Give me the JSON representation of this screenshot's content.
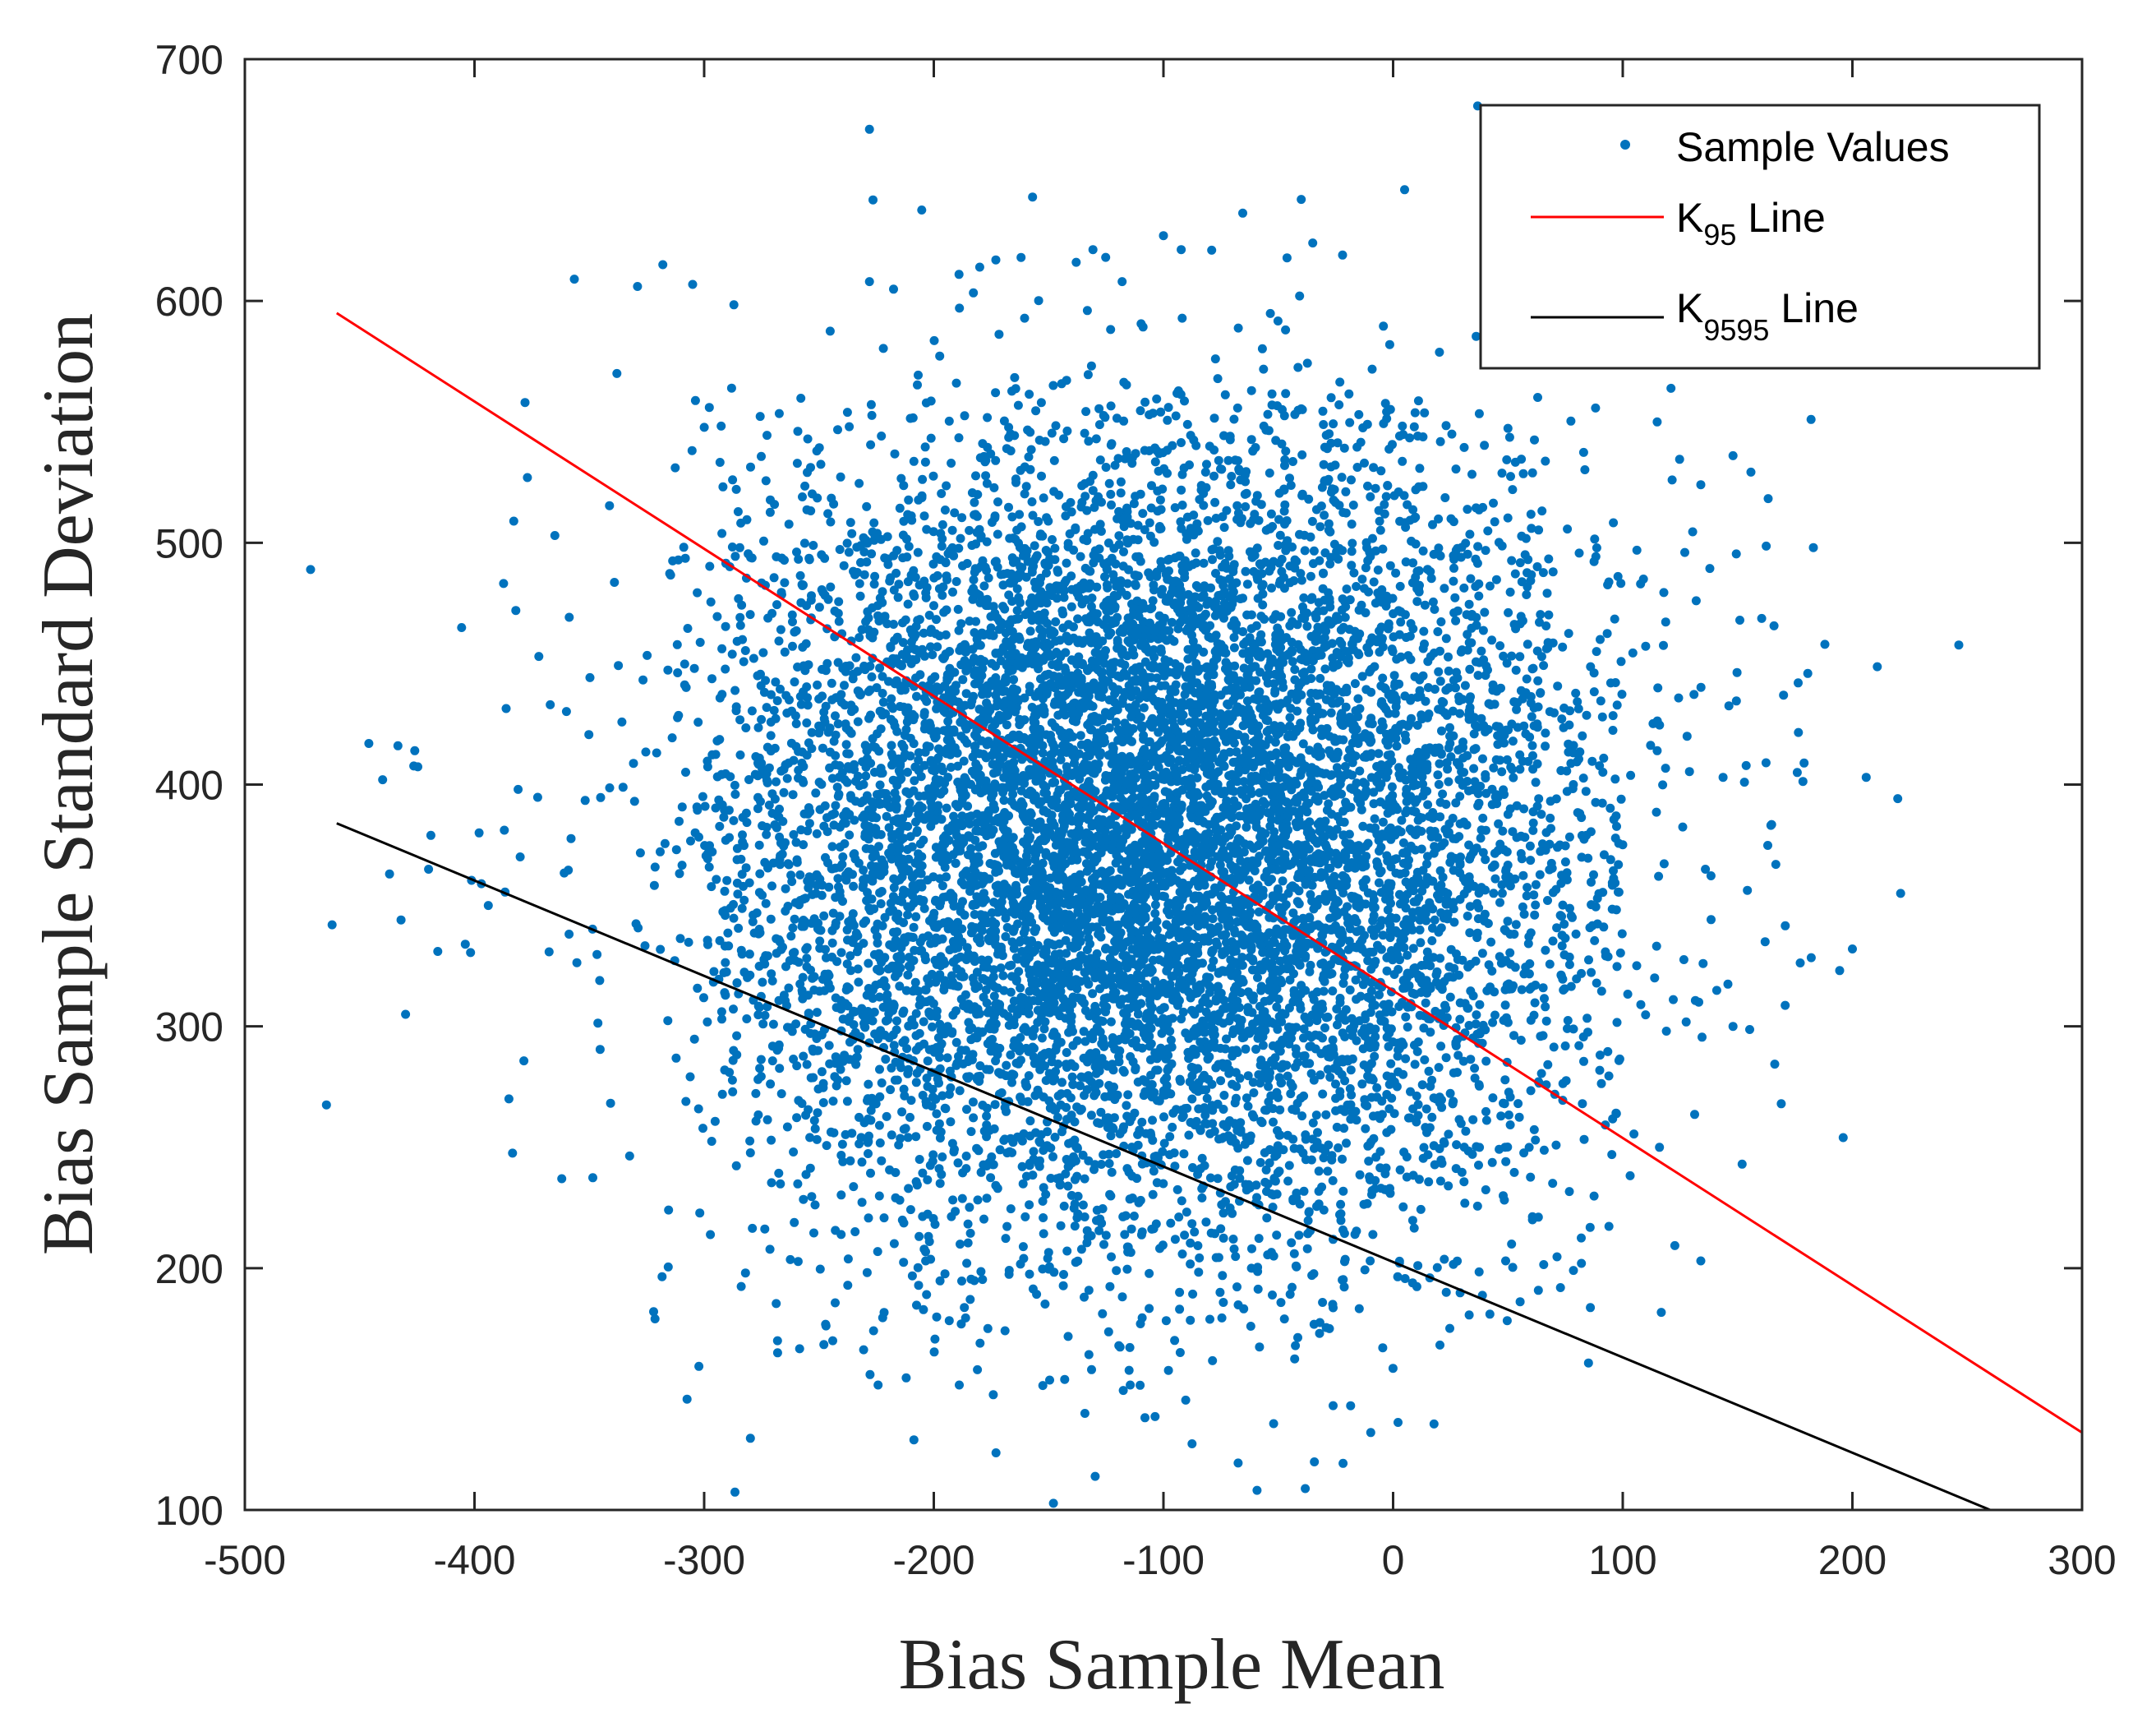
{
  "chart_data": {
    "type": "scatter",
    "title": "",
    "xlabel": "Bias Sample Mean",
    "ylabel": "Bias Sample Standard Deviation",
    "xlim": [
      -500,
      300
    ],
    "ylim": [
      100,
      700
    ],
    "xticks": [
      -500,
      -400,
      -300,
      -200,
      -100,
      0,
      100,
      200,
      300
    ],
    "yticks": [
      100,
      200,
      300,
      400,
      500,
      600,
      700
    ],
    "xtick_labels": [
      "-500",
      "-400",
      "-300",
      "-200",
      "-100",
      "0",
      "100",
      "200",
      "300"
    ],
    "ytick_labels": [
      "100",
      "200",
      "300",
      "400",
      "500",
      "600",
      "700"
    ],
    "grid": false,
    "legend_position": "top-right",
    "scatter_series": {
      "name": "Sample Values",
      "color": "#0072BD",
      "count": 10000,
      "distribution": "bivariate normal",
      "mean_x": -105,
      "mean_y": 380,
      "sd_x": 100,
      "sd_y": 85,
      "seed": 7,
      "points": [
        [
          -228,
          671
        ],
        [
          -157,
          643
        ],
        [
          5,
          646
        ],
        [
          -40,
          642
        ],
        [
          -100,
          627
        ],
        [
          -318,
          615
        ],
        [
          -329,
          606
        ],
        [
          -189,
          611
        ],
        [
          -180,
          614
        ],
        [
          -173,
          617
        ],
        [
          -162,
          618
        ],
        [
          -138,
          616
        ],
        [
          -79,
          621
        ],
        [
          -35,
          624
        ],
        [
          -22,
          619
        ],
        [
          -228,
          608
        ],
        [
          -118,
          608
        ],
        [
          -462,
          342
        ],
        [
          -446,
          417
        ],
        [
          -440,
          402
        ],
        [
          -437,
          363
        ],
        [
          -432,
          344
        ],
        [
          -430,
          305
        ],
        [
          -426,
          414
        ],
        [
          -419,
          379
        ],
        [
          -416,
          331
        ],
        [
          -420,
          365
        ],
        [
          -404,
          334
        ],
        [
          -398,
          380
        ],
        [
          -394,
          350
        ],
        [
          -397,
          359
        ],
        [
          -385,
          270
        ],
        [
          -382,
          472
        ],
        [
          -381,
          398
        ],
        [
          -378,
          558
        ],
        [
          -372,
          453
        ],
        [
          -367,
          433
        ],
        [
          -362,
          237
        ],
        [
          -365,
          503
        ],
        [
          -338,
          570
        ],
        [
          -322,
          182
        ],
        [
          -282,
          198
        ],
        [
          -268,
          165
        ],
        [
          -244,
          170
        ],
        [
          -181,
          158
        ],
        [
          -143,
          154
        ],
        [
          -110,
          177
        ],
        [
          -93,
          190
        ],
        [
          -93,
          183
        ],
        [
          -52,
          205
        ],
        [
          -43,
          206
        ],
        [
          -10,
          203
        ],
        [
          16,
          196
        ],
        [
          49,
          203
        ],
        [
          82,
          202
        ],
        [
          134,
          203
        ],
        [
          152,
          243
        ],
        [
          182,
          551
        ],
        [
          183,
          498
        ],
        [
          188,
          458
        ],
        [
          196,
          254
        ],
        [
          200,
          332
        ],
        [
          206,
          403
        ],
        [
          221,
          355
        ],
        [
          176,
          405
        ],
        [
          170,
          437
        ],
        [
          169,
          268
        ],
        [
          162,
          335
        ],
        [
          153,
          401
        ],
        [
          151,
          468
        ],
        [
          148,
          536
        ],
        [
          134,
          524
        ],
        [
          115,
          550
        ],
        [
          98,
          590
        ],
        [
          109,
          485
        ],
        [
          132,
          476
        ],
        [
          127,
          496
        ],
        [
          136,
          365
        ],
        [
          116,
          250
        ],
        [
          119,
          298
        ],
        [
          148,
          300
        ],
        [
          135,
          326
        ],
        [
          128,
          420
        ]
      ]
    },
    "lines": [
      {
        "name": "K_95 Line",
        "label_main": "K",
        "label_sub": "95",
        "label_suffix": " Line",
        "color": "#FF0000",
        "x": [
          -460,
          300
        ],
        "y": [
          595,
          132
        ]
      },
      {
        "name": "K_9595 Line",
        "label_main": "K",
        "label_sub": "9595",
        "label_suffix": " Line",
        "color": "#000000",
        "x": [
          -460,
          260
        ],
        "y": [
          384,
          100
        ]
      }
    ]
  },
  "legend": {
    "scatter_label": "Sample Values",
    "k95_main": "K",
    "k95_sub": "95",
    "k95_suffix": " Line",
    "k9595_main": "K",
    "k9595_sub": "9595",
    "k9595_suffix": " Line"
  }
}
